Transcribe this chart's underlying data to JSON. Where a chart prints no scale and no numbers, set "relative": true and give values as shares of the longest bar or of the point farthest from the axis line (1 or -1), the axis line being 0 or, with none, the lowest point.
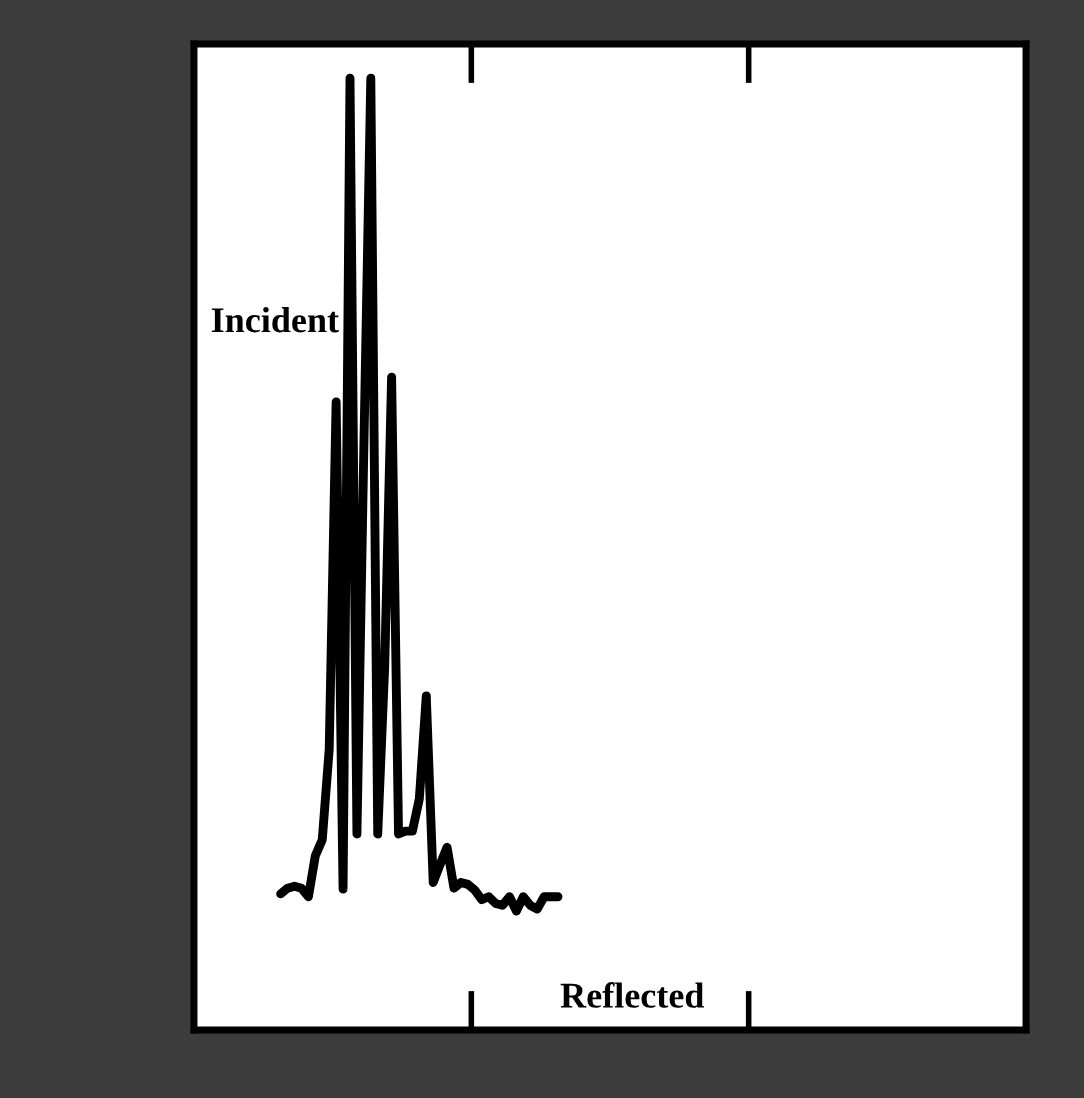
{
  "chart_data": {
    "type": "line",
    "relative": true,
    "categories": [
      null,
      null,
      null,
      null,
      null,
      null,
      null,
      null,
      null,
      null,
      null,
      null,
      null,
      null,
      null,
      null,
      null,
      null,
      null,
      null,
      null,
      null,
      null,
      null,
      null,
      null,
      null,
      null,
      null,
      null,
      null,
      null,
      null,
      null,
      null,
      null,
      null,
      null,
      null,
      null,
      null
    ],
    "series": [
      {
        "color": "#000000",
        "values": [
          0.143,
          0.149,
          0.151,
          0.149,
          0.14,
          0.183,
          0.2,
          0.295,
          0.66,
          0.148,
          1.0,
          0.206,
          0.613,
          1.0,
          0.206,
          0.381,
          0.686,
          0.206,
          0.209,
          0.209,
          0.243,
          0.351,
          0.155,
          0.174,
          0.192,
          0.149,
          0.155,
          0.153,
          0.147,
          0.137,
          0.14,
          0.133,
          0.131,
          0.14,
          0.125,
          0.14,
          0.131,
          0.127,
          0.14,
          0.14,
          0.14
        ]
      }
    ],
    "annotations": [
      "Incident",
      "Reflected"
    ]
  }
}
